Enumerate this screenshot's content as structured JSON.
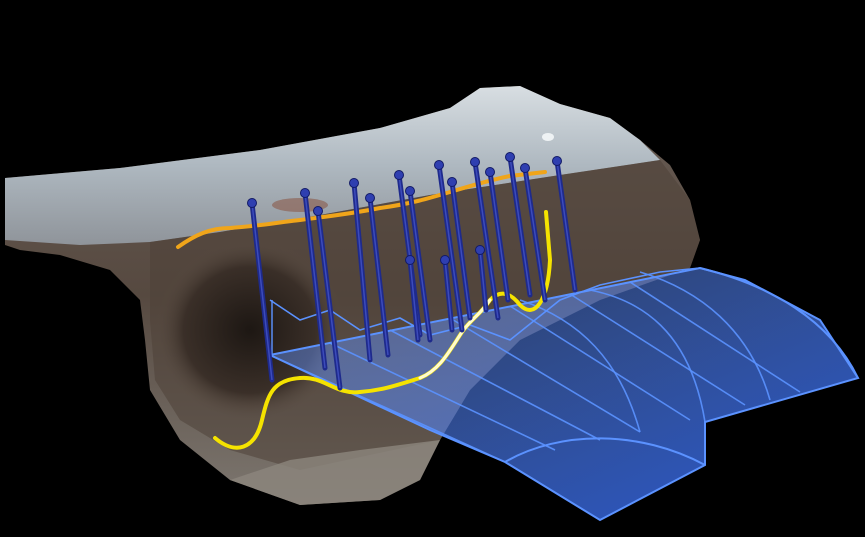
{
  "scene": {
    "background": "#000000",
    "terrain": {
      "top_color": "#b9c2c8",
      "face_color": "#6f655e",
      "dark_color": "#2c241f"
    },
    "boreholes": {
      "count": 17,
      "stick_color": "#1e2a8c",
      "knob_color": "#2f3fb0"
    },
    "surface_line_color": "#f0a51a",
    "profile_line_color": "#f5e300",
    "profile_highlight_color": "#fffbd0",
    "model_fill_color": "#3f7dff",
    "model_edge_color": "#5b92ff"
  }
}
